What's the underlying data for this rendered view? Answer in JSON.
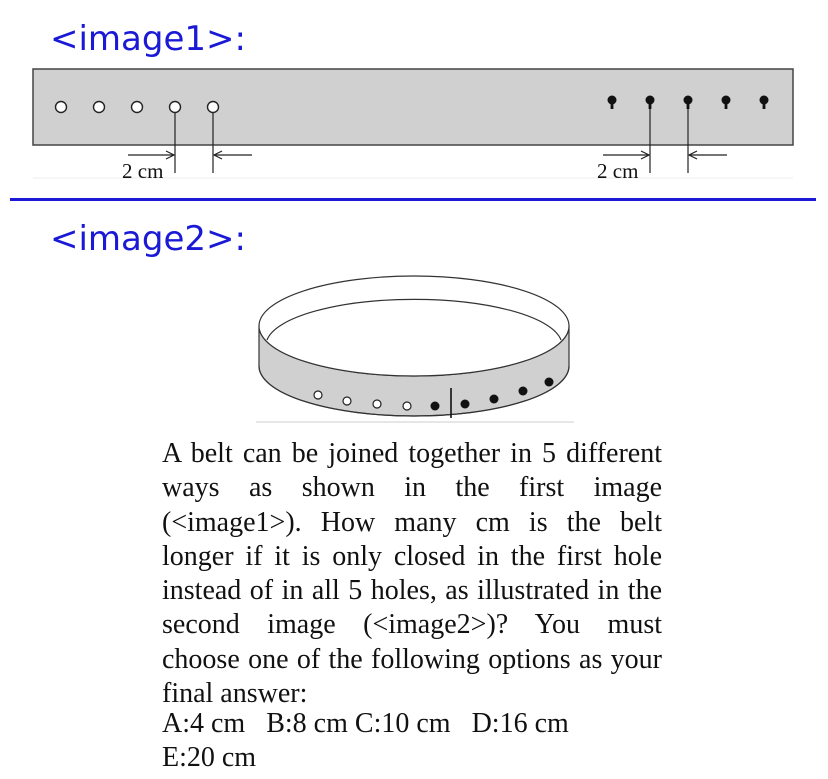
{
  "labels": {
    "image1": "<image1>:",
    "image2": "<image2>:"
  },
  "strip": {
    "left_dimension": "2 cm",
    "right_dimension": "2 cm",
    "hole_count_open": 5,
    "hole_count_filled": 5
  },
  "loop": {
    "open_holes": 4,
    "filled_holes": 5
  },
  "question": "A belt can be joined together in 5 different ways as shown in the first image (<image1>). How many cm is the belt longer if it is only closed in the first hole instead of in all 5 holes, as illustrated in the second image (<image2>)? You must choose one of the following options as your final answer:",
  "options": {
    "a": "A:4 cm",
    "b": "B:8 cm",
    "c": "C:10 cm",
    "d": "D:16 cm",
    "e": "E:20 cm"
  }
}
